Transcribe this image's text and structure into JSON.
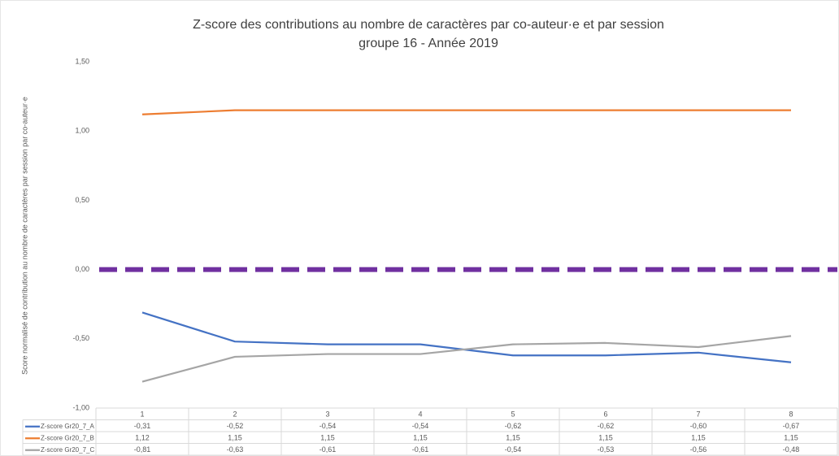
{
  "chart_data": {
    "type": "line",
    "title": "Z-score des contributions au nombre de caractères par co-auteur·e et par session",
    "subtitle": "groupe 16 - Année 2019",
    "y_label": "Score normalisé de contribution au nombre de caractères par session par co-auteur·e",
    "categories": [
      "1",
      "2",
      "3",
      "4",
      "5",
      "6",
      "7",
      "8"
    ],
    "series": [
      {
        "name": "Z-score Gr20_7_A",
        "color": "#4472c4",
        "values": [
          -0.31,
          -0.52,
          -0.54,
          -0.54,
          -0.62,
          -0.62,
          -0.6,
          -0.67
        ],
        "value_labels": [
          "-0,31",
          "-0,52",
          "-0,54",
          "-0,54",
          "-0,62",
          "-0,62",
          "-0,60",
          "-0,67"
        ]
      },
      {
        "name": "Z-score Gr20_7_B",
        "color": "#ed7d31",
        "values": [
          1.12,
          1.15,
          1.15,
          1.15,
          1.15,
          1.15,
          1.15,
          1.15
        ],
        "value_labels": [
          "1,12",
          "1,15",
          "1,15",
          "1,15",
          "1,15",
          "1,15",
          "1,15",
          "1,15"
        ]
      },
      {
        "name": "Z-score Gr20_7_C",
        "color": "#a5a5a5",
        "values": [
          -0.81,
          -0.63,
          -0.61,
          -0.61,
          -0.54,
          -0.53,
          -0.56,
          -0.48
        ],
        "value_labels": [
          "-0,81",
          "-0,63",
          "-0,61",
          "-0,61",
          "-0,54",
          "-0,53",
          "-0,56",
          "-0,48"
        ]
      }
    ],
    "ylim": [
      -1,
      1.5
    ],
    "yticks": [
      {
        "value": -1,
        "label": "-1,00"
      },
      {
        "value": -0.5,
        "label": "-0,50"
      },
      {
        "value": 0,
        "label": "0,00"
      },
      {
        "value": 0.5,
        "label": "0,50"
      },
      {
        "value": 1,
        "label": "1,00"
      },
      {
        "value": 1.5,
        "label": "1,50"
      }
    ],
    "grid": false,
    "reference_line": {
      "y": 0,
      "color": "#7030a0",
      "style": "dashed"
    },
    "data_table": true
  }
}
